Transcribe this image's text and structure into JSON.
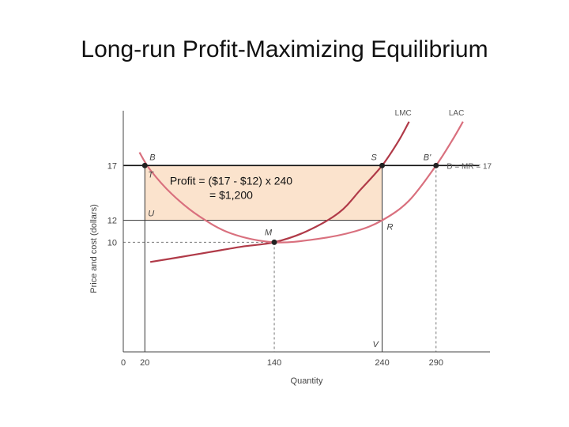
{
  "slide": {
    "title": "Long-run Profit-Maximizing Equilibrium"
  },
  "chart_data": {
    "type": "line",
    "xlabel": "Quantity",
    "ylabel": "Price and cost (dollars)",
    "xlim": [
      0,
      340
    ],
    "ylim": [
      0,
      22
    ],
    "x_ticks": [
      {
        "value": 0,
        "label": "0"
      },
      {
        "value": 20,
        "label": "20"
      },
      {
        "value": 140,
        "label": "140"
      },
      {
        "value": 240,
        "label": "240"
      },
      {
        "value": 290,
        "label": "290"
      }
    ],
    "y_ticks": [
      {
        "value": 10,
        "label": "10"
      },
      {
        "value": 12,
        "label": "12"
      },
      {
        "value": 17,
        "label": "17"
      }
    ],
    "series": [
      {
        "name": "LMC",
        "color": "#b03a48",
        "points": [
          [
            25,
            8.2
          ],
          [
            50,
            8.6
          ],
          [
            80,
            9.1
          ],
          [
            110,
            9.6
          ],
          [
            140,
            10.0
          ],
          [
            170,
            11.0
          ],
          [
            200,
            12.7
          ],
          [
            220,
            14.8
          ],
          [
            240,
            17.0
          ],
          [
            255,
            19.2
          ],
          [
            265,
            21.0
          ]
        ]
      },
      {
        "name": "LAC",
        "color": "#d9707e",
        "points": [
          [
            15,
            18.2
          ],
          [
            25,
            16.6
          ],
          [
            45,
            14.4
          ],
          [
            70,
            12.4
          ],
          [
            100,
            10.8
          ],
          [
            140,
            10.0
          ],
          [
            180,
            10.3
          ],
          [
            215,
            11.0
          ],
          [
            240,
            12.0
          ],
          [
            265,
            13.8
          ],
          [
            290,
            17.0
          ],
          [
            305,
            19.3
          ],
          [
            315,
            21.0
          ]
        ]
      },
      {
        "name": "D = MR = 17",
        "color": "#111111",
        "points": [
          [
            0,
            17
          ],
          [
            330,
            17
          ]
        ]
      }
    ],
    "profit_area": {
      "x": [
        20,
        240
      ],
      "y": [
        12,
        17
      ],
      "color": "#fbe3cd"
    },
    "points": [
      {
        "label": "B",
        "x": 20,
        "y": 17
      },
      {
        "label": "S",
        "x": 240,
        "y": 17
      },
      {
        "label": "B'",
        "x": 290,
        "y": 17
      },
      {
        "label": "M",
        "x": 140,
        "y": 10
      },
      {
        "label": "R",
        "x": 240,
        "y": 12
      },
      {
        "label": "T",
        "x": 20,
        "y": 17
      },
      {
        "label": "U",
        "x": 20,
        "y": 12
      },
      {
        "label": "V",
        "x": 240,
        "y": 0
      }
    ],
    "annotation": {
      "line1": "Profit = ($17 - $12) x 240",
      "line2": "= $1,200"
    }
  }
}
